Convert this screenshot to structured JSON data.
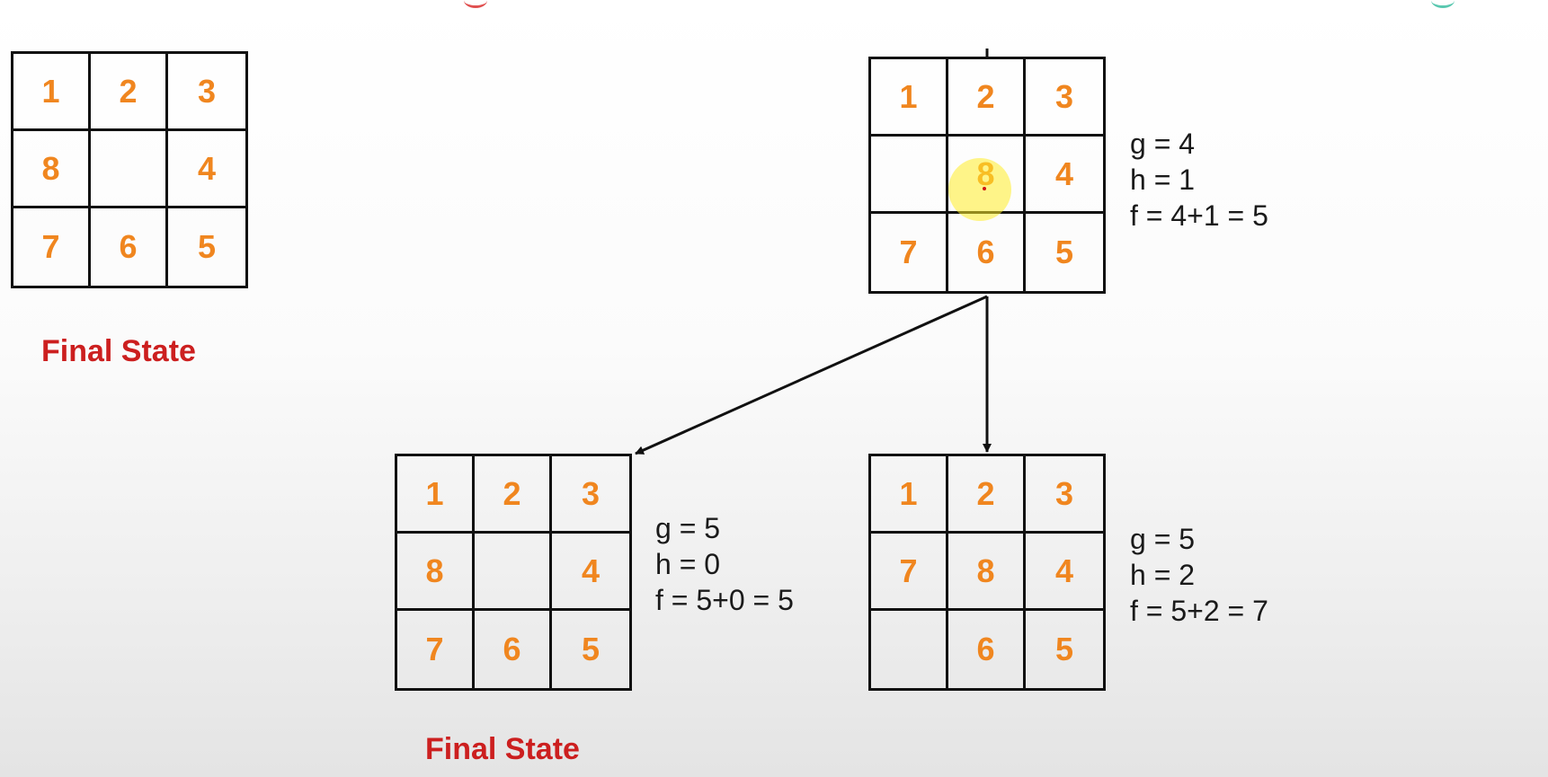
{
  "diagram": {
    "boards": [
      {
        "id": "final-state-reference",
        "tiles": [
          "1",
          "2",
          "3",
          "8",
          "",
          "4",
          "7",
          "6",
          "5"
        ],
        "caption": "Final State"
      },
      {
        "id": "parent-node",
        "tiles": [
          "1",
          "2",
          "3",
          "",
          "8",
          "4",
          "7",
          "6",
          "5"
        ],
        "stats": [
          "g = 4",
          "h = 1",
          "f = 4+1 = 5"
        ]
      },
      {
        "id": "child-left",
        "tiles": [
          "1",
          "2",
          "3",
          "8",
          "",
          "4",
          "7",
          "6",
          "5"
        ],
        "stats": [
          "g = 5",
          "h = 0",
          "f = 5+0 = 5"
        ],
        "caption": "Final State"
      },
      {
        "id": "child-right",
        "tiles": [
          "1",
          "2",
          "3",
          "7",
          "8",
          "4",
          "",
          "6",
          "5"
        ],
        "stats": [
          "g = 5",
          "h = 2",
          "f = 5+2 = 7"
        ]
      }
    ],
    "colors": {
      "tile_text": "#f0861f",
      "caption": "#cc1f1f",
      "stats_text": "#1a1a1a",
      "grid_lines": "#111111",
      "cursor_highlight": "#ffec28"
    }
  }
}
